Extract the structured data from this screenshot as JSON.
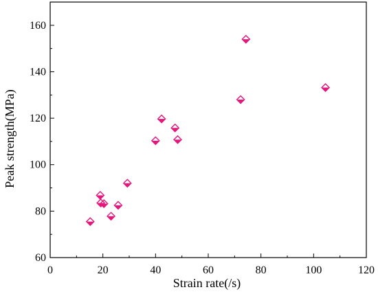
{
  "chart_data": {
    "type": "scatter",
    "title": "",
    "xlabel": "Strain rate(/s)",
    "ylabel": "Peak strength(MPa)",
    "xlim": [
      0,
      120
    ],
    "ylim": [
      60,
      170
    ],
    "xticks": [
      0,
      20,
      40,
      60,
      80,
      100,
      120
    ],
    "yticks": [
      60,
      80,
      100,
      120,
      140,
      160
    ],
    "grid": false,
    "legend": "none",
    "marker": "diamond",
    "marker_color": "#e6177a",
    "points": [
      {
        "x": 15.2,
        "y": 75.5
      },
      {
        "x": 19.0,
        "y": 86.8
      },
      {
        "x": 19.2,
        "y": 83.5
      },
      {
        "x": 20.4,
        "y": 83.2
      },
      {
        "x": 23.1,
        "y": 77.8
      },
      {
        "x": 25.8,
        "y": 82.5
      },
      {
        "x": 29.3,
        "y": 92.0
      },
      {
        "x": 40.0,
        "y": 110.3
      },
      {
        "x": 42.3,
        "y": 119.7
      },
      {
        "x": 47.4,
        "y": 115.8
      },
      {
        "x": 48.4,
        "y": 110.8
      },
      {
        "x": 72.3,
        "y": 128.0
      },
      {
        "x": 74.3,
        "y": 154.0
      },
      {
        "x": 104.5,
        "y": 133.2
      }
    ]
  }
}
